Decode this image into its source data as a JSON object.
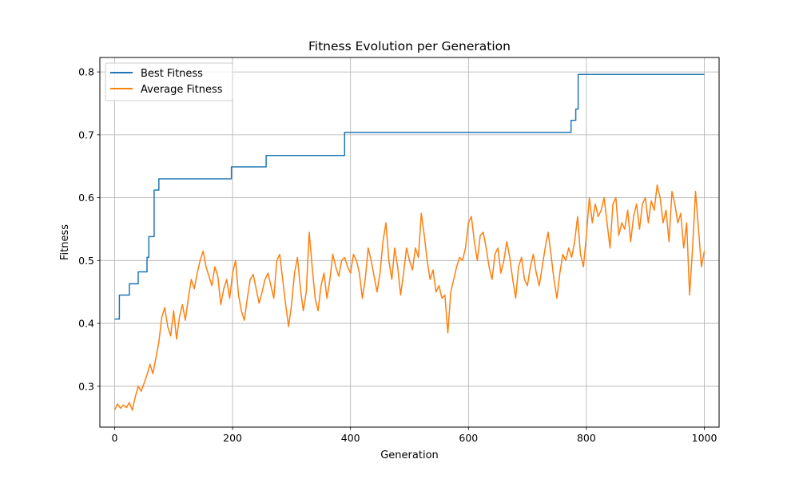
{
  "chart_data": {
    "type": "line",
    "title": "Fitness Evolution per Generation",
    "xlabel": "Generation",
    "ylabel": "Fitness",
    "xlim": [
      -25,
      1025
    ],
    "ylim": [
      0.235,
      0.823
    ],
    "xticks": [
      0,
      200,
      400,
      600,
      800,
      1000
    ],
    "yticks": [
      0.3,
      0.4,
      0.5,
      0.6,
      0.7,
      0.8
    ],
    "xtick_labels": [
      "0",
      "200",
      "400",
      "600",
      "800",
      "1000"
    ],
    "ytick_labels": [
      "0.3",
      "0.4",
      "0.5",
      "0.6",
      "0.7",
      "0.8"
    ],
    "grid": true,
    "legend_position": "top-left",
    "series": [
      {
        "name": "Best Fitness",
        "color": "#1f77b4",
        "step": true,
        "points": [
          [
            0,
            0.407
          ],
          [
            8,
            0.445
          ],
          [
            25,
            0.463
          ],
          [
            40,
            0.482
          ],
          [
            55,
            0.505
          ],
          [
            58,
            0.538
          ],
          [
            67,
            0.612
          ],
          [
            75,
            0.63
          ],
          [
            198,
            0.649
          ],
          [
            257,
            0.667
          ],
          [
            390,
            0.704
          ],
          [
            774,
            0.723
          ],
          [
            782,
            0.741
          ],
          [
            786,
            0.796
          ],
          [
            1000,
            0.796
          ]
        ]
      },
      {
        "name": "Average Fitness",
        "color": "#ff7f0e",
        "step": false,
        "points": [
          [
            0,
            0.262
          ],
          [
            5,
            0.272
          ],
          [
            10,
            0.265
          ],
          [
            15,
            0.27
          ],
          [
            20,
            0.266
          ],
          [
            25,
            0.274
          ],
          [
            30,
            0.262
          ],
          [
            35,
            0.283
          ],
          [
            40,
            0.3
          ],
          [
            45,
            0.292
          ],
          [
            50,
            0.305
          ],
          [
            55,
            0.318
          ],
          [
            60,
            0.335
          ],
          [
            65,
            0.32
          ],
          [
            70,
            0.345
          ],
          [
            75,
            0.37
          ],
          [
            80,
            0.41
          ],
          [
            85,
            0.425
          ],
          [
            90,
            0.395
          ],
          [
            95,
            0.38
          ],
          [
            100,
            0.42
          ],
          [
            105,
            0.375
          ],
          [
            110,
            0.41
          ],
          [
            115,
            0.43
          ],
          [
            120,
            0.405
          ],
          [
            125,
            0.44
          ],
          [
            130,
            0.47
          ],
          [
            135,
            0.455
          ],
          [
            140,
            0.48
          ],
          [
            145,
            0.5
          ],
          [
            150,
            0.515
          ],
          [
            155,
            0.49
          ],
          [
            160,
            0.475
          ],
          [
            165,
            0.46
          ],
          [
            170,
            0.49
          ],
          [
            175,
            0.475
          ],
          [
            180,
            0.43
          ],
          [
            185,
            0.455
          ],
          [
            190,
            0.47
          ],
          [
            195,
            0.44
          ],
          [
            200,
            0.48
          ],
          [
            205,
            0.5
          ],
          [
            210,
            0.445
          ],
          [
            215,
            0.42
          ],
          [
            220,
            0.405
          ],
          [
            225,
            0.44
          ],
          [
            230,
            0.47
          ],
          [
            235,
            0.478
          ],
          [
            240,
            0.455
          ],
          [
            245,
            0.432
          ],
          [
            250,
            0.45
          ],
          [
            255,
            0.47
          ],
          [
            260,
            0.48
          ],
          [
            265,
            0.46
          ],
          [
            270,
            0.44
          ],
          [
            275,
            0.5
          ],
          [
            280,
            0.51
          ],
          [
            285,
            0.47
          ],
          [
            290,
            0.43
          ],
          [
            295,
            0.395
          ],
          [
            300,
            0.43
          ],
          [
            305,
            0.48
          ],
          [
            310,
            0.505
          ],
          [
            315,
            0.455
          ],
          [
            320,
            0.42
          ],
          [
            325,
            0.45
          ],
          [
            330,
            0.545
          ],
          [
            335,
            0.49
          ],
          [
            340,
            0.44
          ],
          [
            345,
            0.42
          ],
          [
            350,
            0.46
          ],
          [
            355,
            0.48
          ],
          [
            360,
            0.44
          ],
          [
            365,
            0.47
          ],
          [
            370,
            0.51
          ],
          [
            375,
            0.49
          ],
          [
            380,
            0.475
          ],
          [
            385,
            0.5
          ],
          [
            390,
            0.505
          ],
          [
            395,
            0.49
          ],
          [
            400,
            0.48
          ],
          [
            405,
            0.51
          ],
          [
            410,
            0.5
          ],
          [
            415,
            0.48
          ],
          [
            420,
            0.44
          ],
          [
            425,
            0.47
          ],
          [
            430,
            0.52
          ],
          [
            435,
            0.5
          ],
          [
            440,
            0.475
          ],
          [
            445,
            0.45
          ],
          [
            450,
            0.48
          ],
          [
            455,
            0.53
          ],
          [
            460,
            0.56
          ],
          [
            465,
            0.5
          ],
          [
            470,
            0.47
          ],
          [
            475,
            0.52
          ],
          [
            480,
            0.49
          ],
          [
            485,
            0.445
          ],
          [
            490,
            0.48
          ],
          [
            495,
            0.52
          ],
          [
            500,
            0.5
          ],
          [
            505,
            0.485
          ],
          [
            510,
            0.52
          ],
          [
            515,
            0.505
          ],
          [
            520,
            0.575
          ],
          [
            525,
            0.54
          ],
          [
            530,
            0.5
          ],
          [
            535,
            0.47
          ],
          [
            540,
            0.485
          ],
          [
            545,
            0.45
          ],
          [
            550,
            0.46
          ],
          [
            555,
            0.44
          ],
          [
            560,
            0.445
          ],
          [
            565,
            0.385
          ],
          [
            570,
            0.45
          ],
          [
            575,
            0.47
          ],
          [
            580,
            0.49
          ],
          [
            585,
            0.505
          ],
          [
            590,
            0.5
          ],
          [
            595,
            0.52
          ],
          [
            600,
            0.56
          ],
          [
            605,
            0.57
          ],
          [
            610,
            0.53
          ],
          [
            615,
            0.5
          ],
          [
            620,
            0.54
          ],
          [
            625,
            0.545
          ],
          [
            630,
            0.52
          ],
          [
            635,
            0.49
          ],
          [
            640,
            0.47
          ],
          [
            645,
            0.51
          ],
          [
            650,
            0.52
          ],
          [
            655,
            0.48
          ],
          [
            660,
            0.5
          ],
          [
            665,
            0.53
          ],
          [
            670,
            0.505
          ],
          [
            675,
            0.47
          ],
          [
            680,
            0.44
          ],
          [
            685,
            0.49
          ],
          [
            690,
            0.505
          ],
          [
            695,
            0.47
          ],
          [
            700,
            0.46
          ],
          [
            705,
            0.49
          ],
          [
            710,
            0.51
          ],
          [
            715,
            0.48
          ],
          [
            720,
            0.46
          ],
          [
            725,
            0.49
          ],
          [
            730,
            0.52
          ],
          [
            735,
            0.545
          ],
          [
            740,
            0.51
          ],
          [
            745,
            0.47
          ],
          [
            750,
            0.44
          ],
          [
            755,
            0.48
          ],
          [
            760,
            0.51
          ],
          [
            765,
            0.5
          ],
          [
            770,
            0.52
          ],
          [
            775,
            0.505
          ],
          [
            780,
            0.53
          ],
          [
            785,
            0.57
          ],
          [
            790,
            0.51
          ],
          [
            795,
            0.49
          ],
          [
            800,
            0.54
          ],
          [
            805,
            0.6
          ],
          [
            810,
            0.56
          ],
          [
            815,
            0.59
          ],
          [
            820,
            0.57
          ],
          [
            825,
            0.58
          ],
          [
            830,
            0.6
          ],
          [
            835,
            0.56
          ],
          [
            840,
            0.52
          ],
          [
            845,
            0.59
          ],
          [
            850,
            0.6
          ],
          [
            855,
            0.54
          ],
          [
            860,
            0.56
          ],
          [
            865,
            0.55
          ],
          [
            870,
            0.58
          ],
          [
            875,
            0.53
          ],
          [
            880,
            0.57
          ],
          [
            885,
            0.59
          ],
          [
            890,
            0.55
          ],
          [
            895,
            0.59
          ],
          [
            900,
            0.6
          ],
          [
            905,
            0.56
          ],
          [
            910,
            0.595
          ],
          [
            915,
            0.58
          ],
          [
            920,
            0.62
          ],
          [
            925,
            0.6
          ],
          [
            930,
            0.56
          ],
          [
            935,
            0.58
          ],
          [
            940,
            0.53
          ],
          [
            945,
            0.61
          ],
          [
            950,
            0.59
          ],
          [
            955,
            0.56
          ],
          [
            960,
            0.575
          ],
          [
            965,
            0.52
          ],
          [
            970,
            0.56
          ],
          [
            975,
            0.445
          ],
          [
            980,
            0.52
          ],
          [
            985,
            0.61
          ],
          [
            990,
            0.55
          ],
          [
            995,
            0.49
          ],
          [
            1000,
            0.515
          ]
        ]
      }
    ]
  }
}
